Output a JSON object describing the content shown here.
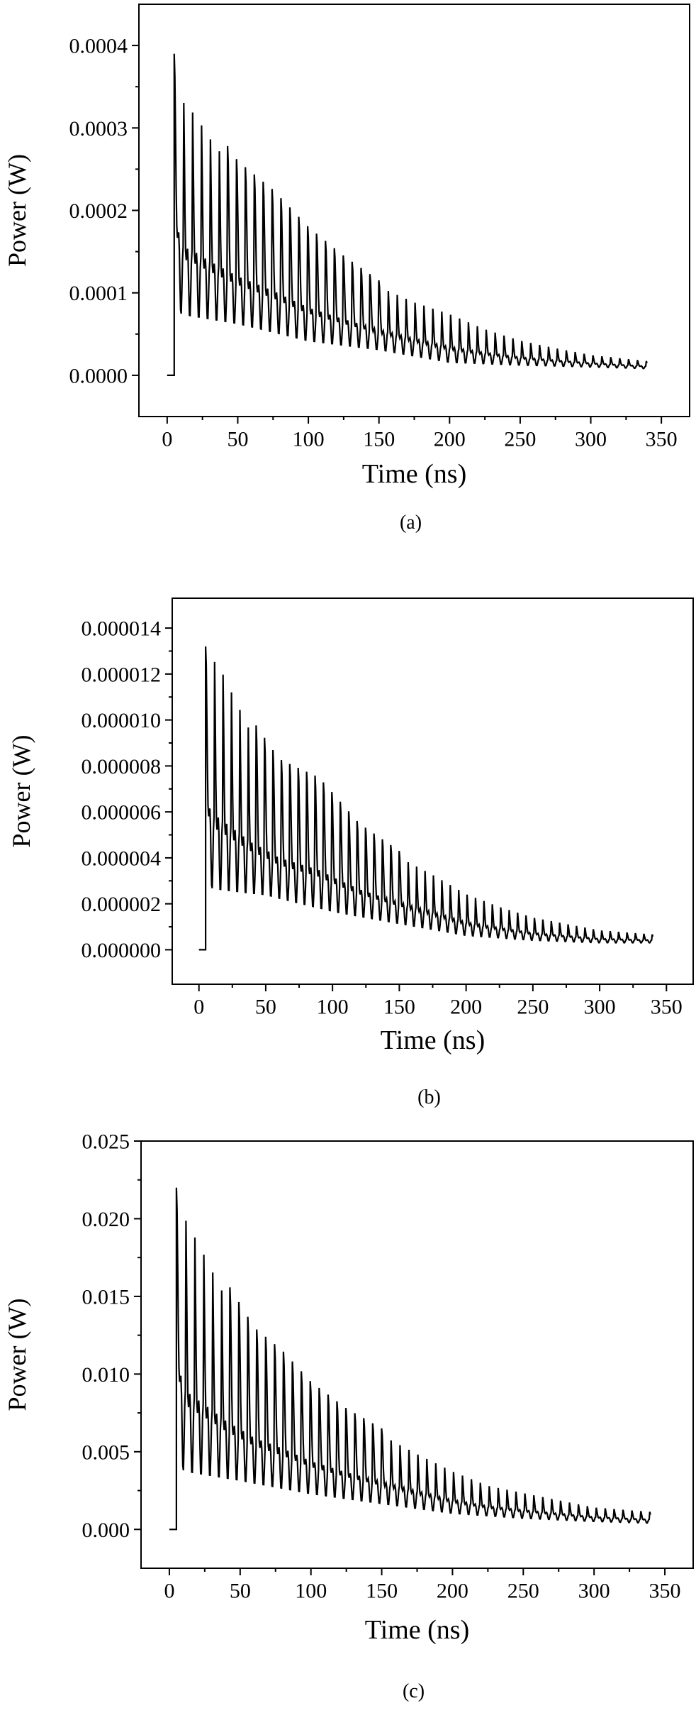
{
  "chart_data": [
    {
      "type": "line",
      "caption": "(a)",
      "xlabel": "Time (ns)",
      "ylabel": "Power (W)",
      "xlim": [
        -20,
        370
      ],
      "ylim": [
        -5e-05,
        0.00045
      ],
      "xticks": [
        "0",
        "50",
        "100",
        "150",
        "200",
        "250",
        "300",
        "350"
      ],
      "yticks": [
        "0.0000",
        "0.0001",
        "0.0002",
        "0.0003",
        "0.0004"
      ],
      "ytick_values": [
        0,
        0.0001,
        0.0002,
        0.0003,
        0.0004
      ],
      "grid": false,
      "legend": "none",
      "series": [
        {
          "onset_ns": 5,
          "end_ns": 340,
          "oscillation_period_ns": 6.3,
          "upper_envelope": [
            [
              5,
              0.00039
            ],
            [
              10,
              0.00036
            ],
            [
              20,
              0.00034
            ],
            [
              30,
              0.00031
            ],
            [
              50,
              0.00026
            ],
            [
              75,
              0.000225
            ],
            [
              100,
              0.00018
            ],
            [
              125,
              0.000145
            ],
            [
              150,
              0.000115
            ],
            [
              175,
              9.5e-05
            ],
            [
              200,
              8e-05
            ],
            [
              225,
              6e-05
            ],
            [
              250,
              4.5e-05
            ],
            [
              275,
              3.5e-05
            ],
            [
              300,
              2.6e-05
            ],
            [
              340,
              1.8e-05
            ]
          ],
          "lower_envelope": [
            [
              5,
              0.00012
            ],
            [
              10,
              7e-05
            ],
            [
              30,
              6.5e-05
            ],
            [
              50,
              6e-05
            ],
            [
              75,
              5e-05
            ],
            [
              100,
              4e-05
            ],
            [
              125,
              3.5e-05
            ],
            [
              150,
              3e-05
            ],
            [
              200,
              1.5e-05
            ],
            [
              250,
              1.2e-05
            ],
            [
              300,
              1e-05
            ],
            [
              340,
              8e-06
            ]
          ]
        }
      ]
    },
    {
      "type": "line",
      "caption": "(b)",
      "xlabel": "Time (ns)",
      "ylabel": "Power (W)",
      "xlim": [
        -20,
        370
      ],
      "ylim": [
        -1.5e-06,
        1.53e-05
      ],
      "xticks": [
        "0",
        "50",
        "100",
        "150",
        "200",
        "250",
        "300",
        "350"
      ],
      "yticks": [
        "0.000000",
        "0.000002",
        "0.000004",
        "0.000006",
        "0.000008",
        "0.000010",
        "0.000012",
        "0.000014"
      ],
      "ytick_values": [
        0,
        2e-06,
        4e-06,
        6e-06,
        8e-06,
        1e-05,
        1.2e-05,
        1.4e-05
      ],
      "grid": false,
      "legend": "none",
      "series": [
        {
          "onset_ns": 5,
          "end_ns": 340,
          "oscillation_period_ns": 6.3,
          "upper_envelope": [
            [
              5,
              1.32e-05
            ],
            [
              13,
              1.36e-05
            ],
            [
              25,
              1.2e-05
            ],
            [
              40,
              1e-05
            ],
            [
              60,
              8.3e-06
            ],
            [
              90,
              7.5e-06
            ],
            [
              120,
              5.5e-06
            ],
            [
              150,
              4.3e-06
            ],
            [
              175,
              3.5e-06
            ],
            [
              200,
              2.6e-06
            ],
            [
              225,
              2e-06
            ],
            [
              250,
              1.5e-06
            ],
            [
              275,
              1.2e-06
            ],
            [
              300,
              9e-07
            ],
            [
              340,
              7e-07
            ]
          ],
          "lower_envelope": [
            [
              5,
              4e-06
            ],
            [
              10,
              2.5e-06
            ],
            [
              50,
              2.3e-06
            ],
            [
              100,
              1.6e-06
            ],
            [
              150,
              1.1e-06
            ],
            [
              200,
              6e-07
            ],
            [
              250,
              4e-07
            ],
            [
              300,
              3e-07
            ],
            [
              340,
              3e-07
            ]
          ]
        }
      ]
    },
    {
      "type": "line",
      "caption": "(c)",
      "xlabel": "Time (ns)",
      "ylabel": "Power (W)",
      "xlim": [
        -20,
        370
      ],
      "ylim": [
        -0.0025,
        0.025
      ],
      "xticks": [
        "0",
        "50",
        "100",
        "150",
        "200",
        "250",
        "300",
        "350"
      ],
      "yticks": [
        "0.000",
        "0.005",
        "0.010",
        "0.015",
        "0.020",
        "0.025"
      ],
      "ytick_values": [
        0,
        0.005,
        0.01,
        0.015,
        0.02,
        0.025
      ],
      "grid": false,
      "legend": "none",
      "series": [
        {
          "onset_ns": 5,
          "end_ns": 340,
          "oscillation_period_ns": 6.3,
          "upper_envelope": [
            [
              5,
              0.022
            ],
            [
              12,
              0.0215
            ],
            [
              25,
              0.019
            ],
            [
              40,
              0.016
            ],
            [
              60,
              0.013
            ],
            [
              80,
              0.0115
            ],
            [
              100,
              0.0095
            ],
            [
              125,
              0.0078
            ],
            [
              150,
              0.0065
            ],
            [
              175,
              0.0052
            ],
            [
              200,
              0.004
            ],
            [
              225,
              0.003
            ],
            [
              250,
              0.0025
            ],
            [
              275,
              0.002
            ],
            [
              300,
              0.0015
            ],
            [
              340,
              0.0012
            ]
          ],
          "lower_envelope": [
            [
              5,
              0.007
            ],
            [
              10,
              0.0035
            ],
            [
              50,
              0.003
            ],
            [
              100,
              0.0022
            ],
            [
              150,
              0.0016
            ],
            [
              200,
              0.001
            ],
            [
              250,
              0.0007
            ],
            [
              300,
              0.0005
            ],
            [
              340,
              0.0004
            ]
          ]
        }
      ]
    }
  ]
}
